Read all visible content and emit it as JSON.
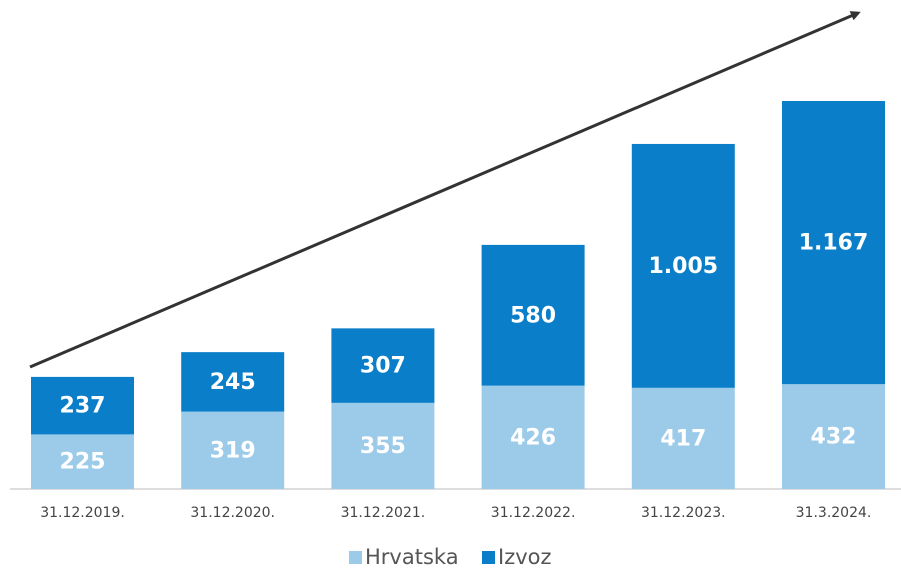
{
  "chart_data": {
    "type": "stacked_bar",
    "categories": [
      "31.12.2019.",
      "31.12.2020.",
      "31.12.2021.",
      "31.12.2022.",
      "31.12.2023.",
      "31.3.2024."
    ],
    "series": [
      {
        "name": "Hrvatska",
        "color": "#9ccbea",
        "values": [
          225,
          319,
          355,
          426,
          417,
          432
        ]
      },
      {
        "name": "Izvoz",
        "color": "#0a7ec8",
        "values": [
          237,
          245,
          307,
          580,
          1005,
          1167
        ],
        "value_labels": [
          "237",
          "245",
          "307",
          "580",
          "1.005",
          "1.167"
        ]
      }
    ]
  }
}
